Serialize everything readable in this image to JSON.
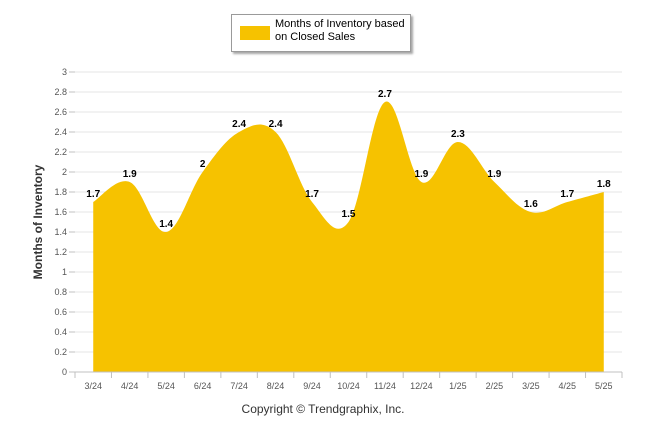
{
  "chart_data": {
    "type": "area",
    "categories": [
      "3/24",
      "4/24",
      "5/24",
      "6/24",
      "7/24",
      "8/24",
      "9/24",
      "10/24",
      "11/24",
      "12/24",
      "1/25",
      "2/25",
      "3/25",
      "4/25",
      "5/25"
    ],
    "series": [
      {
        "name": "Months of Inventory based on Closed Sales",
        "values": [
          1.7,
          1.9,
          1.4,
          2.0,
          2.4,
          2.4,
          1.7,
          1.5,
          2.7,
          1.9,
          2.3,
          1.9,
          1.6,
          1.7,
          1.8
        ],
        "labels": [
          "1.7",
          "1.9",
          "1.4",
          "2",
          "2.4",
          "2.4",
          "1.7",
          "1.5",
          "2.7",
          "1.9",
          "2.3",
          "1.9",
          "1.6",
          "1.7",
          "1.8"
        ]
      }
    ],
    "ylabel": "Months of Inventory",
    "xlabel": "",
    "ylim": [
      0,
      3
    ],
    "yticks": [
      "0",
      "0.2",
      "0.4",
      "0.6",
      "0.8",
      "1",
      "1.2",
      "1.4",
      "1.6",
      "1.8",
      "2",
      "2.2",
      "2.4",
      "2.6",
      "2.8",
      "3"
    ],
    "grid": true,
    "legend_position": "top-center",
    "colors": {
      "fill": "#F6C200",
      "grid": "#e6e6e6",
      "axis": "#c0c0c0"
    }
  },
  "footer": {
    "copyright": "Copyright © Trendgraphix, Inc."
  }
}
